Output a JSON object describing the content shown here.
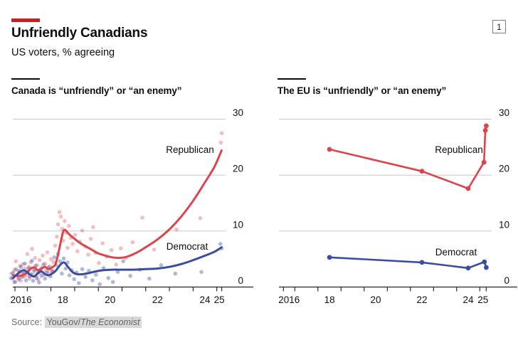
{
  "header": {
    "title": "Unfriendly Canadians",
    "subtitle": "US voters, % agreeing",
    "badge": "1",
    "accent_color": "#ce1a20"
  },
  "source": {
    "prefix": "Source:",
    "org": "YouGov",
    "separator": "/",
    "publication": "The Economist"
  },
  "chart_data": [
    {
      "type": "scatter",
      "title": "Canada is “unfriendly” or “an enemy”",
      "ylabel": "US voters, % agreeing",
      "ylim": [
        0,
        30
      ],
      "y_gridlines": [
        0,
        10,
        20,
        30
      ],
      "y_tick_labels": [
        "0",
        "10",
        "20",
        "30"
      ],
      "x_axis": {
        "tick_years": [
          2017,
          2018,
          2019,
          2020,
          2021,
          2022,
          2023,
          2024,
          2025
        ],
        "labels": [
          {
            "text": "2016",
            "year": 2016
          },
          {
            "text": "18",
            "year": 2018
          },
          {
            "text": "20",
            "year": 2020
          },
          {
            "text": "22",
            "year": 2022
          },
          {
            "text": "24",
            "year": 2024
          },
          {
            "text": "25",
            "year": 2025
          }
        ]
      },
      "series": [
        {
          "name": "Republican",
          "color": "#db444b",
          "smooth": true,
          "dots": false,
          "points": [
            [
              2016.4,
              2.1
            ],
            [
              2016.6,
              2.0
            ],
            [
              2016.8,
              2.1
            ],
            [
              2017.0,
              2.6
            ],
            [
              2017.15,
              3.3
            ],
            [
              2017.3,
              3.5
            ],
            [
              2017.45,
              3.0
            ],
            [
              2017.6,
              3.3
            ],
            [
              2017.75,
              3.6
            ],
            [
              2017.9,
              3.2
            ],
            [
              2018.05,
              3.5
            ],
            [
              2018.2,
              4.2
            ],
            [
              2018.35,
              6.8
            ],
            [
              2018.5,
              9.7
            ],
            [
              2018.6,
              10.2
            ],
            [
              2018.75,
              9.5
            ],
            [
              2019.0,
              8.6
            ],
            [
              2019.25,
              7.8
            ],
            [
              2019.5,
              7.2
            ],
            [
              2019.75,
              6.6
            ],
            [
              2020.0,
              6.0
            ],
            [
              2020.3,
              5.6
            ],
            [
              2020.6,
              5.3
            ],
            [
              2020.9,
              5.2
            ],
            [
              2021.2,
              5.4
            ],
            [
              2021.6,
              6.1
            ],
            [
              2022.0,
              7.1
            ],
            [
              2022.5,
              8.5
            ],
            [
              2023.0,
              10.3
            ],
            [
              2023.5,
              12.6
            ],
            [
              2024.0,
              15.4
            ],
            [
              2024.5,
              18.7
            ],
            [
              2024.9,
              21.5
            ],
            [
              2025.2,
              24.4
            ]
          ]
        },
        {
          "name": "Democrat",
          "color": "#3a4da0",
          "smooth": true,
          "dots": false,
          "points": [
            [
              2016.4,
              1.6
            ],
            [
              2016.55,
              2.2
            ],
            [
              2016.7,
              2.7
            ],
            [
              2016.85,
              3.0
            ],
            [
              2017.0,
              2.6
            ],
            [
              2017.15,
              2.1
            ],
            [
              2017.3,
              1.9
            ],
            [
              2017.45,
              2.5
            ],
            [
              2017.6,
              2.8
            ],
            [
              2017.75,
              2.3
            ],
            [
              2017.9,
              2.1
            ],
            [
              2018.05,
              2.4
            ],
            [
              2018.2,
              2.9
            ],
            [
              2018.4,
              4.0
            ],
            [
              2018.55,
              4.4
            ],
            [
              2018.7,
              3.7
            ],
            [
              2018.9,
              2.7
            ],
            [
              2019.1,
              2.3
            ],
            [
              2019.35,
              2.3
            ],
            [
              2019.6,
              2.5
            ],
            [
              2019.9,
              2.8
            ],
            [
              2020.2,
              3.0
            ],
            [
              2020.6,
              3.1
            ],
            [
              2021.0,
              3.1
            ],
            [
              2021.5,
              3.1
            ],
            [
              2022.0,
              3.2
            ],
            [
              2022.5,
              3.3
            ],
            [
              2023.0,
              3.6
            ],
            [
              2023.5,
              4.1
            ],
            [
              2024.0,
              4.8
            ],
            [
              2024.5,
              5.6
            ],
            [
              2024.9,
              6.3
            ],
            [
              2025.2,
              7.1
            ]
          ]
        }
      ],
      "scatter": [
        {
          "name": "Republican poll results",
          "color": "#db444b",
          "opacity": 0.35,
          "points": [
            [
              2016.33,
              2.4
            ],
            [
              2016.38,
              1.5
            ],
            [
              2016.45,
              3.0
            ],
            [
              2016.5,
              0.9
            ],
            [
              2016.52,
              4.6
            ],
            [
              2016.56,
              2.0
            ],
            [
              2016.62,
              2.9
            ],
            [
              2016.66,
              1.6
            ],
            [
              2016.7,
              3.8
            ],
            [
              2016.72,
              1.1
            ],
            [
              2016.78,
              2.6
            ],
            [
              2016.82,
              4.1
            ],
            [
              2016.86,
              1.9
            ],
            [
              2016.9,
              3.3
            ],
            [
              2016.95,
              2.1
            ],
            [
              2017.0,
              5.9
            ],
            [
              2017.03,
              2.8
            ],
            [
              2017.08,
              3.6
            ],
            [
              2017.1,
              1.5
            ],
            [
              2017.15,
              4.4
            ],
            [
              2017.2,
              6.8
            ],
            [
              2017.23,
              2.3
            ],
            [
              2017.28,
              3.1
            ],
            [
              2017.33,
              5.2
            ],
            [
              2017.38,
              2.0
            ],
            [
              2017.42,
              3.9
            ],
            [
              2017.46,
              1.3
            ],
            [
              2017.52,
              4.8
            ],
            [
              2017.56,
              2.6
            ],
            [
              2017.6,
              3.4
            ],
            [
              2017.65,
              5.6
            ],
            [
              2017.7,
              2.2
            ],
            [
              2017.75,
              4.2
            ],
            [
              2017.8,
              3.0
            ],
            [
              2017.85,
              6.2
            ],
            [
              2017.9,
              2.5
            ],
            [
              2017.95,
              3.7
            ],
            [
              2018.0,
              5.0
            ],
            [
              2018.05,
              2.9
            ],
            [
              2018.1,
              4.5
            ],
            [
              2018.18,
              7.4
            ],
            [
              2018.25,
              9.0
            ],
            [
              2018.3,
              11.2
            ],
            [
              2018.36,
              13.4
            ],
            [
              2018.42,
              12.6
            ],
            [
              2018.48,
              10.4
            ],
            [
              2018.52,
              8.3
            ],
            [
              2018.58,
              11.8
            ],
            [
              2018.64,
              9.7
            ],
            [
              2018.7,
              7.0
            ],
            [
              2018.76,
              10.9
            ],
            [
              2018.84,
              8.8
            ],
            [
              2018.92,
              7.7
            ],
            [
              2019.02,
              9.3
            ],
            [
              2019.12,
              6.4
            ],
            [
              2019.22,
              8.1
            ],
            [
              2019.32,
              10.1
            ],
            [
              2019.45,
              7.2
            ],
            [
              2019.58,
              5.8
            ],
            [
              2019.68,
              8.6
            ],
            [
              2019.78,
              10.7
            ],
            [
              2019.88,
              6.1
            ],
            [
              2020.02,
              4.3
            ],
            [
              2020.18,
              7.8
            ],
            [
              2020.35,
              5.4
            ],
            [
              2020.55,
              6.6
            ],
            [
              2020.75,
              4.0
            ],
            [
              2020.95,
              6.9
            ],
            [
              2021.15,
              5.2
            ],
            [
              2021.45,
              8.0
            ],
            [
              2021.86,
              12.4
            ],
            [
              2022.35,
              6.7
            ],
            [
              2023.3,
              10.3
            ],
            [
              2024.3,
              12.3
            ],
            [
              2025.17,
              25.8
            ],
            [
              2025.21,
              27.5
            ]
          ]
        },
        {
          "name": "Democrat poll results",
          "color": "#3a4da0",
          "opacity": 0.4,
          "points": [
            [
              2016.32,
              1.6
            ],
            [
              2016.4,
              2.5
            ],
            [
              2016.46,
              0.9
            ],
            [
              2016.52,
              3.2
            ],
            [
              2016.58,
              2.1
            ],
            [
              2016.63,
              1.4
            ],
            [
              2016.68,
              2.8
            ],
            [
              2016.73,
              3.6
            ],
            [
              2016.78,
              1.8
            ],
            [
              2016.85,
              2.4
            ],
            [
              2016.9,
              4.2
            ],
            [
              2016.95,
              1.2
            ],
            [
              2017.0,
              2.7
            ],
            [
              2017.05,
              3.4
            ],
            [
              2017.1,
              1.9
            ],
            [
              2017.15,
              2.3
            ],
            [
              2017.2,
              4.7
            ],
            [
              2017.25,
              1.1
            ],
            [
              2017.3,
              2.9
            ],
            [
              2017.35,
              3.8
            ],
            [
              2017.4,
              1.6
            ],
            [
              2017.45,
              2.5
            ],
            [
              2017.5,
              0.8
            ],
            [
              2017.55,
              3.1
            ],
            [
              2017.6,
              2.0
            ],
            [
              2017.68,
              4.0
            ],
            [
              2017.75,
              1.5
            ],
            [
              2017.82,
              2.6
            ],
            [
              2017.9,
              3.5
            ],
            [
              2017.98,
              1.9
            ],
            [
              2018.06,
              2.8
            ],
            [
              2018.14,
              5.3
            ],
            [
              2018.22,
              3.9
            ],
            [
              2018.3,
              5.9
            ],
            [
              2018.38,
              4.6
            ],
            [
              2018.46,
              2.4
            ],
            [
              2018.54,
              5.1
            ],
            [
              2018.62,
              3.3
            ],
            [
              2018.7,
              4.4
            ],
            [
              2018.78,
              2.1
            ],
            [
              2018.88,
              3.0
            ],
            [
              2018.98,
              1.4
            ],
            [
              2019.08,
              2.6
            ],
            [
              2019.18,
              0.7
            ],
            [
              2019.32,
              3.2
            ],
            [
              2019.46,
              1.8
            ],
            [
              2019.6,
              2.9
            ],
            [
              2019.75,
              1.2
            ],
            [
              2019.9,
              2.2
            ],
            [
              2020.06,
              0.5
            ],
            [
              2020.22,
              3.4
            ],
            [
              2020.42,
              1.6
            ],
            [
              2020.62,
              0.9
            ],
            [
              2020.82,
              2.7
            ],
            [
              2021.05,
              4.6
            ],
            [
              2021.35,
              2.0
            ],
            [
              2021.75,
              3.1
            ],
            [
              2022.15,
              1.5
            ],
            [
              2022.65,
              3.9
            ],
            [
              2023.25,
              2.4
            ],
            [
              2024.35,
              2.7
            ],
            [
              2025.15,
              7.7
            ],
            [
              2025.2,
              6.9
            ]
          ]
        }
      ]
    },
    {
      "type": "line",
      "title": "The EU is “unfriendly” or “an enemy”",
      "ylabel": "US voters, % agreeing",
      "ylim": [
        0,
        30
      ],
      "y_gridlines": [
        0,
        10,
        20,
        30
      ],
      "y_tick_labels": [
        "0",
        "10",
        "20",
        "30"
      ],
      "x_axis": {
        "tick_years": [
          2017,
          2018,
          2019,
          2020,
          2021,
          2022,
          2023,
          2024,
          2025
        ],
        "labels": [
          {
            "text": "2016",
            "year": 2016
          },
          {
            "text": "18",
            "year": 2018
          },
          {
            "text": "20",
            "year": 2020
          },
          {
            "text": "22",
            "year": 2022
          },
          {
            "text": "24",
            "year": 2024
          },
          {
            "text": "25",
            "year": 2025
          }
        ]
      },
      "series": [
        {
          "name": "Republican",
          "color": "#db444b",
          "smooth": false,
          "dots": true,
          "points": [
            [
              2018.5,
              24.6
            ],
            [
              2022.5,
              20.7
            ],
            [
              2024.5,
              17.6
            ],
            [
              2025.18,
              22.3
            ],
            [
              2025.24,
              28.0
            ],
            [
              2025.28,
              28.8
            ]
          ]
        },
        {
          "name": "Democrat",
          "color": "#3a4da0",
          "smooth": false,
          "dots": true,
          "points": [
            [
              2018.5,
              5.3
            ],
            [
              2022.5,
              4.4
            ],
            [
              2024.5,
              3.4
            ],
            [
              2025.2,
              4.5
            ],
            [
              2025.28,
              3.5
            ]
          ]
        }
      ],
      "scatter": []
    }
  ]
}
